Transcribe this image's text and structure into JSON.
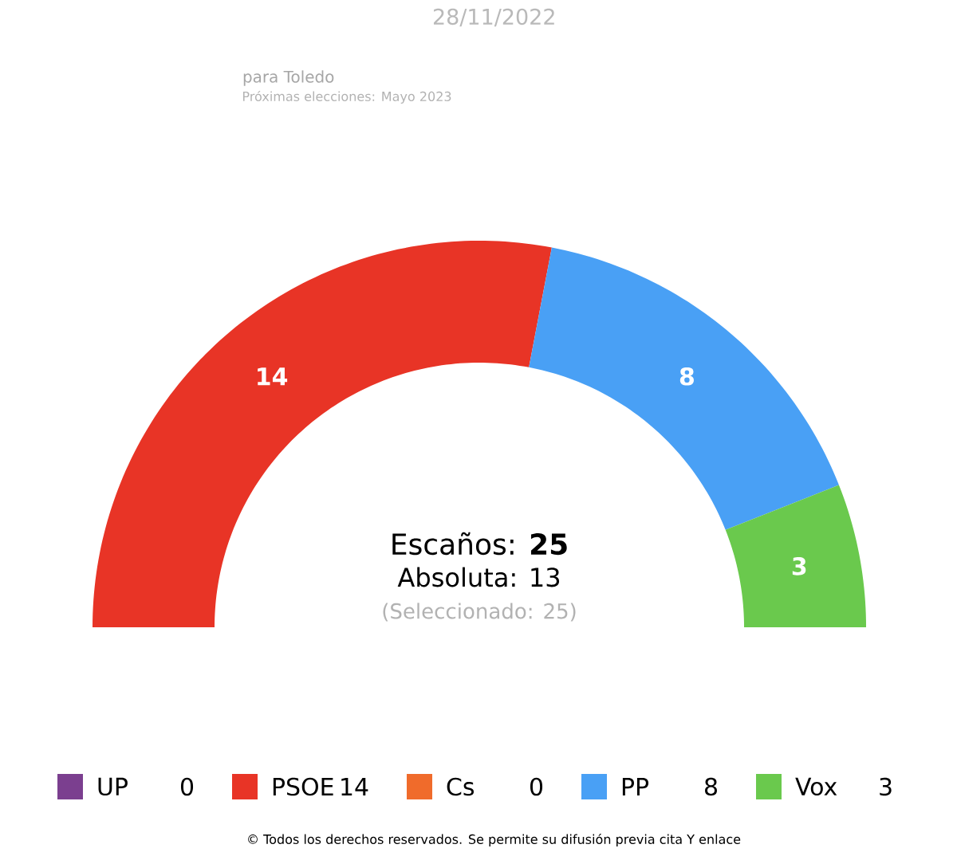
{
  "chart_data": {
    "type": "donut",
    "title": "para Toledo",
    "subtitle": "28/11/2022",
    "categories": [
      "UP",
      "PSOE",
      "Cs",
      "PP",
      "Vox"
    ],
    "values": [
      0,
      14,
      0,
      8,
      3
    ],
    "colors": [
      "#7b3f8f",
      "#e83426",
      "#f06b2b",
      "#49a0f5",
      "#6ac94d"
    ],
    "data_labels": true,
    "value_labels": [
      "0",
      "14",
      "0",
      "8",
      "3"
    ],
    "legend": "bottom",
    "annotations": [
      "Próximas elecciones: Mayo 2023",
      "Escaños: **25**",
      "Absoluta: 13",
      "(Seleccionado: 25)",
      "© Todos los derechos reservados. Se permite su difusión previa cita Y enlace"
    ]
  }
}
